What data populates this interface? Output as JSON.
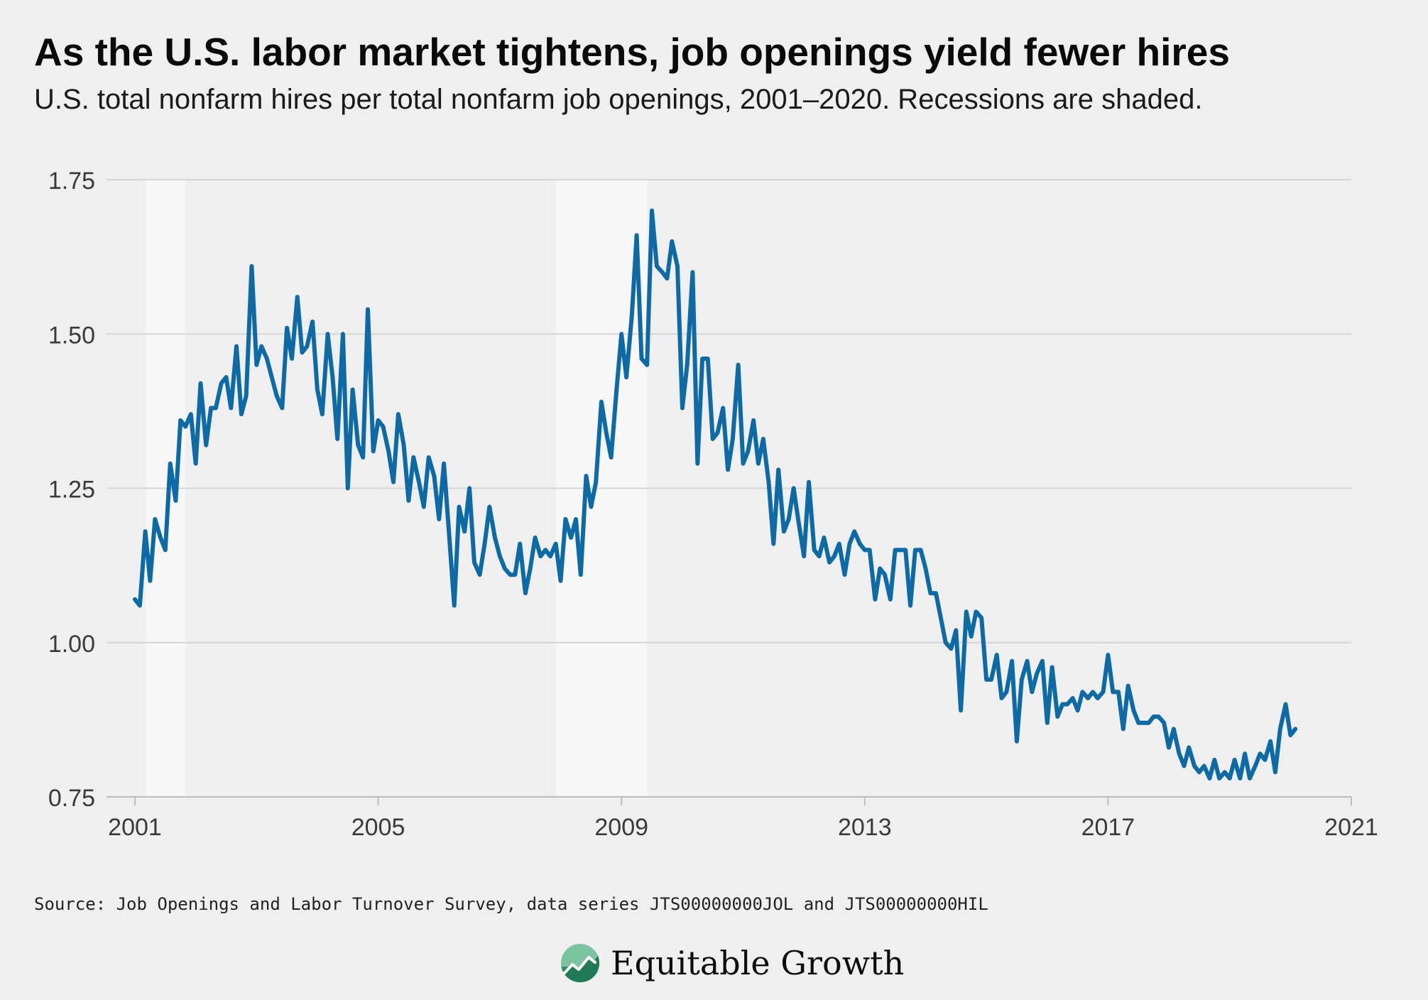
{
  "title": "As the U.S. labor market tightens, job openings yield fewer hires",
  "subtitle": "U.S. total nonfarm hires per total nonfarm job openings, 2001–2020. Recessions are shaded.",
  "source": "Source: Job Openings and Labor Turnover Survey, data series JTS00000000JOL and JTS00000000HIL",
  "brand": {
    "name": "Equitable Growth",
    "logo_icon": "growth-globe-icon"
  },
  "colors": {
    "background": "#efefef",
    "line": "#0e6aa4",
    "grid": "#d6d6d6",
    "recession": "#f7f7f7",
    "axis_text": "#3a3a3a"
  },
  "chart_data": {
    "type": "line",
    "title": "As the U.S. labor market tightens, job openings yield fewer hires",
    "subtitle": "U.S. total nonfarm hires per total nonfarm job openings, 2001–2020. Recessions are shaded.",
    "xlabel": "",
    "ylabel": "",
    "xlim": [
      2001,
      2021
    ],
    "ylim": [
      0.75,
      1.75
    ],
    "x_ticks": [
      2001,
      2005,
      2009,
      2013,
      2017,
      2021
    ],
    "x_tick_labels": [
      "2001",
      "2005",
      "2009",
      "2013",
      "2017",
      "2021"
    ],
    "y_ticks": [
      0.75,
      1.0,
      1.25,
      1.5,
      1.75
    ],
    "y_tick_labels": [
      "0.75",
      "1.00",
      "1.25",
      "1.50",
      "1.75"
    ],
    "grid": "horizontal",
    "legend": "none",
    "recessions": [
      {
        "start": 2001.17,
        "end": 2001.83
      },
      {
        "start": 2007.92,
        "end": 2009.42
      }
    ],
    "series": [
      {
        "points": [
          [
            2001.0,
            1.07
          ],
          [
            2001.08,
            1.06
          ],
          [
            2001.17,
            1.18
          ],
          [
            2001.25,
            1.1
          ],
          [
            2001.33,
            1.2
          ],
          [
            2001.42,
            1.17
          ],
          [
            2001.5,
            1.15
          ],
          [
            2001.58,
            1.29
          ],
          [
            2001.67,
            1.23
          ],
          [
            2001.75,
            1.36
          ],
          [
            2001.83,
            1.35
          ],
          [
            2001.92,
            1.37
          ],
          [
            2002.0,
            1.29
          ],
          [
            2002.08,
            1.42
          ],
          [
            2002.17,
            1.32
          ],
          [
            2002.25,
            1.38
          ],
          [
            2002.33,
            1.38
          ],
          [
            2002.42,
            1.42
          ],
          [
            2002.5,
            1.43
          ],
          [
            2002.58,
            1.38
          ],
          [
            2002.67,
            1.48
          ],
          [
            2002.75,
            1.37
          ],
          [
            2002.83,
            1.4
          ],
          [
            2002.92,
            1.61
          ],
          [
            2003.0,
            1.45
          ],
          [
            2003.08,
            1.48
          ],
          [
            2003.17,
            1.46
          ],
          [
            2003.25,
            1.43
          ],
          [
            2003.33,
            1.4
          ],
          [
            2003.42,
            1.38
          ],
          [
            2003.5,
            1.51
          ],
          [
            2003.58,
            1.46
          ],
          [
            2003.67,
            1.56
          ],
          [
            2003.75,
            1.47
          ],
          [
            2003.83,
            1.48
          ],
          [
            2003.92,
            1.52
          ],
          [
            2004.0,
            1.41
          ],
          [
            2004.08,
            1.37
          ],
          [
            2004.17,
            1.5
          ],
          [
            2004.25,
            1.43
          ],
          [
            2004.33,
            1.33
          ],
          [
            2004.42,
            1.5
          ],
          [
            2004.5,
            1.25
          ],
          [
            2004.58,
            1.41
          ],
          [
            2004.67,
            1.32
          ],
          [
            2004.75,
            1.3
          ],
          [
            2004.83,
            1.54
          ],
          [
            2004.92,
            1.31
          ],
          [
            2005.0,
            1.36
          ],
          [
            2005.08,
            1.35
          ],
          [
            2005.17,
            1.31
          ],
          [
            2005.25,
            1.26
          ],
          [
            2005.33,
            1.37
          ],
          [
            2005.42,
            1.32
          ],
          [
            2005.5,
            1.23
          ],
          [
            2005.58,
            1.3
          ],
          [
            2005.67,
            1.26
          ],
          [
            2005.75,
            1.22
          ],
          [
            2005.83,
            1.3
          ],
          [
            2005.92,
            1.27
          ],
          [
            2006.0,
            1.2
          ],
          [
            2006.08,
            1.29
          ],
          [
            2006.17,
            1.17
          ],
          [
            2006.25,
            1.06
          ],
          [
            2006.33,
            1.22
          ],
          [
            2006.42,
            1.18
          ],
          [
            2006.5,
            1.25
          ],
          [
            2006.58,
            1.13
          ],
          [
            2006.67,
            1.11
          ],
          [
            2006.75,
            1.16
          ],
          [
            2006.83,
            1.22
          ],
          [
            2006.92,
            1.17
          ],
          [
            2007.0,
            1.14
          ],
          [
            2007.08,
            1.12
          ],
          [
            2007.17,
            1.11
          ],
          [
            2007.25,
            1.11
          ],
          [
            2007.33,
            1.16
          ],
          [
            2007.42,
            1.08
          ],
          [
            2007.5,
            1.12
          ],
          [
            2007.58,
            1.17
          ],
          [
            2007.67,
            1.14
          ],
          [
            2007.75,
            1.15
          ],
          [
            2007.83,
            1.14
          ],
          [
            2007.92,
            1.16
          ],
          [
            2008.0,
            1.1
          ],
          [
            2008.08,
            1.2
          ],
          [
            2008.17,
            1.17
          ],
          [
            2008.25,
            1.2
          ],
          [
            2008.33,
            1.11
          ],
          [
            2008.42,
            1.27
          ],
          [
            2008.5,
            1.22
          ],
          [
            2008.58,
            1.26
          ],
          [
            2008.67,
            1.39
          ],
          [
            2008.75,
            1.34
          ],
          [
            2008.83,
            1.3
          ],
          [
            2008.92,
            1.41
          ],
          [
            2009.0,
            1.5
          ],
          [
            2009.08,
            1.43
          ],
          [
            2009.17,
            1.53
          ],
          [
            2009.25,
            1.66
          ],
          [
            2009.33,
            1.46
          ],
          [
            2009.42,
            1.45
          ],
          [
            2009.5,
            1.7
          ],
          [
            2009.58,
            1.61
          ],
          [
            2009.67,
            1.6
          ],
          [
            2009.75,
            1.59
          ],
          [
            2009.83,
            1.65
          ],
          [
            2009.92,
            1.61
          ],
          [
            2010.0,
            1.38
          ],
          [
            2010.08,
            1.45
          ],
          [
            2010.17,
            1.6
          ],
          [
            2010.25,
            1.29
          ],
          [
            2010.33,
            1.46
          ],
          [
            2010.42,
            1.46
          ],
          [
            2010.5,
            1.33
          ],
          [
            2010.58,
            1.34
          ],
          [
            2010.67,
            1.38
          ],
          [
            2010.75,
            1.28
          ],
          [
            2010.83,
            1.33
          ],
          [
            2010.92,
            1.45
          ],
          [
            2011.0,
            1.29
          ],
          [
            2011.08,
            1.31
          ],
          [
            2011.17,
            1.36
          ],
          [
            2011.25,
            1.29
          ],
          [
            2011.33,
            1.33
          ],
          [
            2011.42,
            1.26
          ],
          [
            2011.5,
            1.16
          ],
          [
            2011.58,
            1.28
          ],
          [
            2011.67,
            1.18
          ],
          [
            2011.75,
            1.2
          ],
          [
            2011.83,
            1.25
          ],
          [
            2011.92,
            1.19
          ],
          [
            2012.0,
            1.14
          ],
          [
            2012.08,
            1.26
          ],
          [
            2012.17,
            1.15
          ],
          [
            2012.25,
            1.14
          ],
          [
            2012.33,
            1.17
          ],
          [
            2012.42,
            1.13
          ],
          [
            2012.5,
            1.14
          ],
          [
            2012.58,
            1.16
          ],
          [
            2012.67,
            1.11
          ],
          [
            2012.75,
            1.16
          ],
          [
            2012.83,
            1.18
          ],
          [
            2012.92,
            1.16
          ],
          [
            2013.0,
            1.15
          ],
          [
            2013.08,
            1.15
          ],
          [
            2013.17,
            1.07
          ],
          [
            2013.25,
            1.12
          ],
          [
            2013.33,
            1.11
          ],
          [
            2013.42,
            1.07
          ],
          [
            2013.5,
            1.15
          ],
          [
            2013.58,
            1.15
          ],
          [
            2013.67,
            1.15
          ],
          [
            2013.75,
            1.06
          ],
          [
            2013.83,
            1.15
          ],
          [
            2013.92,
            1.15
          ],
          [
            2014.0,
            1.12
          ],
          [
            2014.08,
            1.08
          ],
          [
            2014.17,
            1.08
          ],
          [
            2014.25,
            1.04
          ],
          [
            2014.33,
            1.0
          ],
          [
            2014.42,
            0.99
          ],
          [
            2014.5,
            1.02
          ],
          [
            2014.58,
            0.89
          ],
          [
            2014.67,
            1.05
          ],
          [
            2014.75,
            1.01
          ],
          [
            2014.83,
            1.05
          ],
          [
            2014.92,
            1.04
          ],
          [
            2015.0,
            0.94
          ],
          [
            2015.08,
            0.94
          ],
          [
            2015.17,
            0.98
          ],
          [
            2015.25,
            0.91
          ],
          [
            2015.33,
            0.92
          ],
          [
            2015.42,
            0.97
          ],
          [
            2015.5,
            0.84
          ],
          [
            2015.58,
            0.94
          ],
          [
            2015.67,
            0.97
          ],
          [
            2015.75,
            0.92
          ],
          [
            2015.83,
            0.95
          ],
          [
            2015.92,
            0.97
          ],
          [
            2016.0,
            0.87
          ],
          [
            2016.08,
            0.96
          ],
          [
            2016.17,
            0.88
          ],
          [
            2016.25,
            0.9
          ],
          [
            2016.33,
            0.9
          ],
          [
            2016.42,
            0.91
          ],
          [
            2016.5,
            0.89
          ],
          [
            2016.58,
            0.92
          ],
          [
            2016.67,
            0.91
          ],
          [
            2016.75,
            0.92
          ],
          [
            2016.83,
            0.91
          ],
          [
            2016.92,
            0.92
          ],
          [
            2017.0,
            0.98
          ],
          [
            2017.08,
            0.92
          ],
          [
            2017.17,
            0.92
          ],
          [
            2017.25,
            0.86
          ],
          [
            2017.33,
            0.93
          ],
          [
            2017.42,
            0.89
          ],
          [
            2017.5,
            0.87
          ],
          [
            2017.58,
            0.87
          ],
          [
            2017.67,
            0.87
          ],
          [
            2017.75,
            0.88
          ],
          [
            2017.83,
            0.88
          ],
          [
            2017.92,
            0.87
          ],
          [
            2018.0,
            0.83
          ],
          [
            2018.08,
            0.86
          ],
          [
            2018.17,
            0.82
          ],
          [
            2018.25,
            0.8
          ],
          [
            2018.33,
            0.83
          ],
          [
            2018.42,
            0.8
          ],
          [
            2018.5,
            0.79
          ],
          [
            2018.58,
            0.8
          ],
          [
            2018.67,
            0.78
          ],
          [
            2018.75,
            0.81
          ],
          [
            2018.83,
            0.78
          ],
          [
            2018.92,
            0.79
          ],
          [
            2019.0,
            0.78
          ],
          [
            2019.08,
            0.81
          ],
          [
            2019.17,
            0.78
          ],
          [
            2019.25,
            0.82
          ],
          [
            2019.33,
            0.78
          ],
          [
            2019.42,
            0.8
          ],
          [
            2019.5,
            0.82
          ],
          [
            2019.58,
            0.81
          ],
          [
            2019.67,
            0.84
          ],
          [
            2019.75,
            0.79
          ],
          [
            2019.83,
            0.86
          ],
          [
            2019.92,
            0.9
          ],
          [
            2020.0,
            0.85
          ],
          [
            2020.08,
            0.86
          ]
        ]
      }
    ]
  }
}
